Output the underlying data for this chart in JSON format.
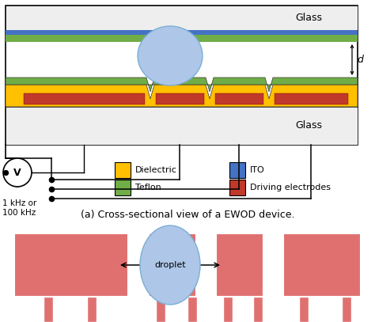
{
  "bg_color": "#ffffff",
  "glass_color": "#eeeeee",
  "ito_color": "#4472c4",
  "teflon_color": "#70ad47",
  "dielectric_color": "#ffc000",
  "electrode_color": "#c0392b",
  "electrode_color2": "#e07070",
  "droplet_color": "#aec6e8",
  "droplet_border": "#7aafd4",
  "wire_color": "#000000",
  "title_a": "(a) Cross-sectional view of a EWOD device.",
  "legend_items": [
    {
      "label": "Dielectric",
      "color": "#ffc000"
    },
    {
      "label": "Teflon",
      "color": "#70ad47"
    },
    {
      "label": "ITO",
      "color": "#4472c4"
    },
    {
      "label": "Driving electrodes",
      "color": "#c0392b"
    }
  ],
  "freq_label": "1 kHz or\n100 kHz",
  "d_label": "d",
  "droplet_label": "droplet"
}
